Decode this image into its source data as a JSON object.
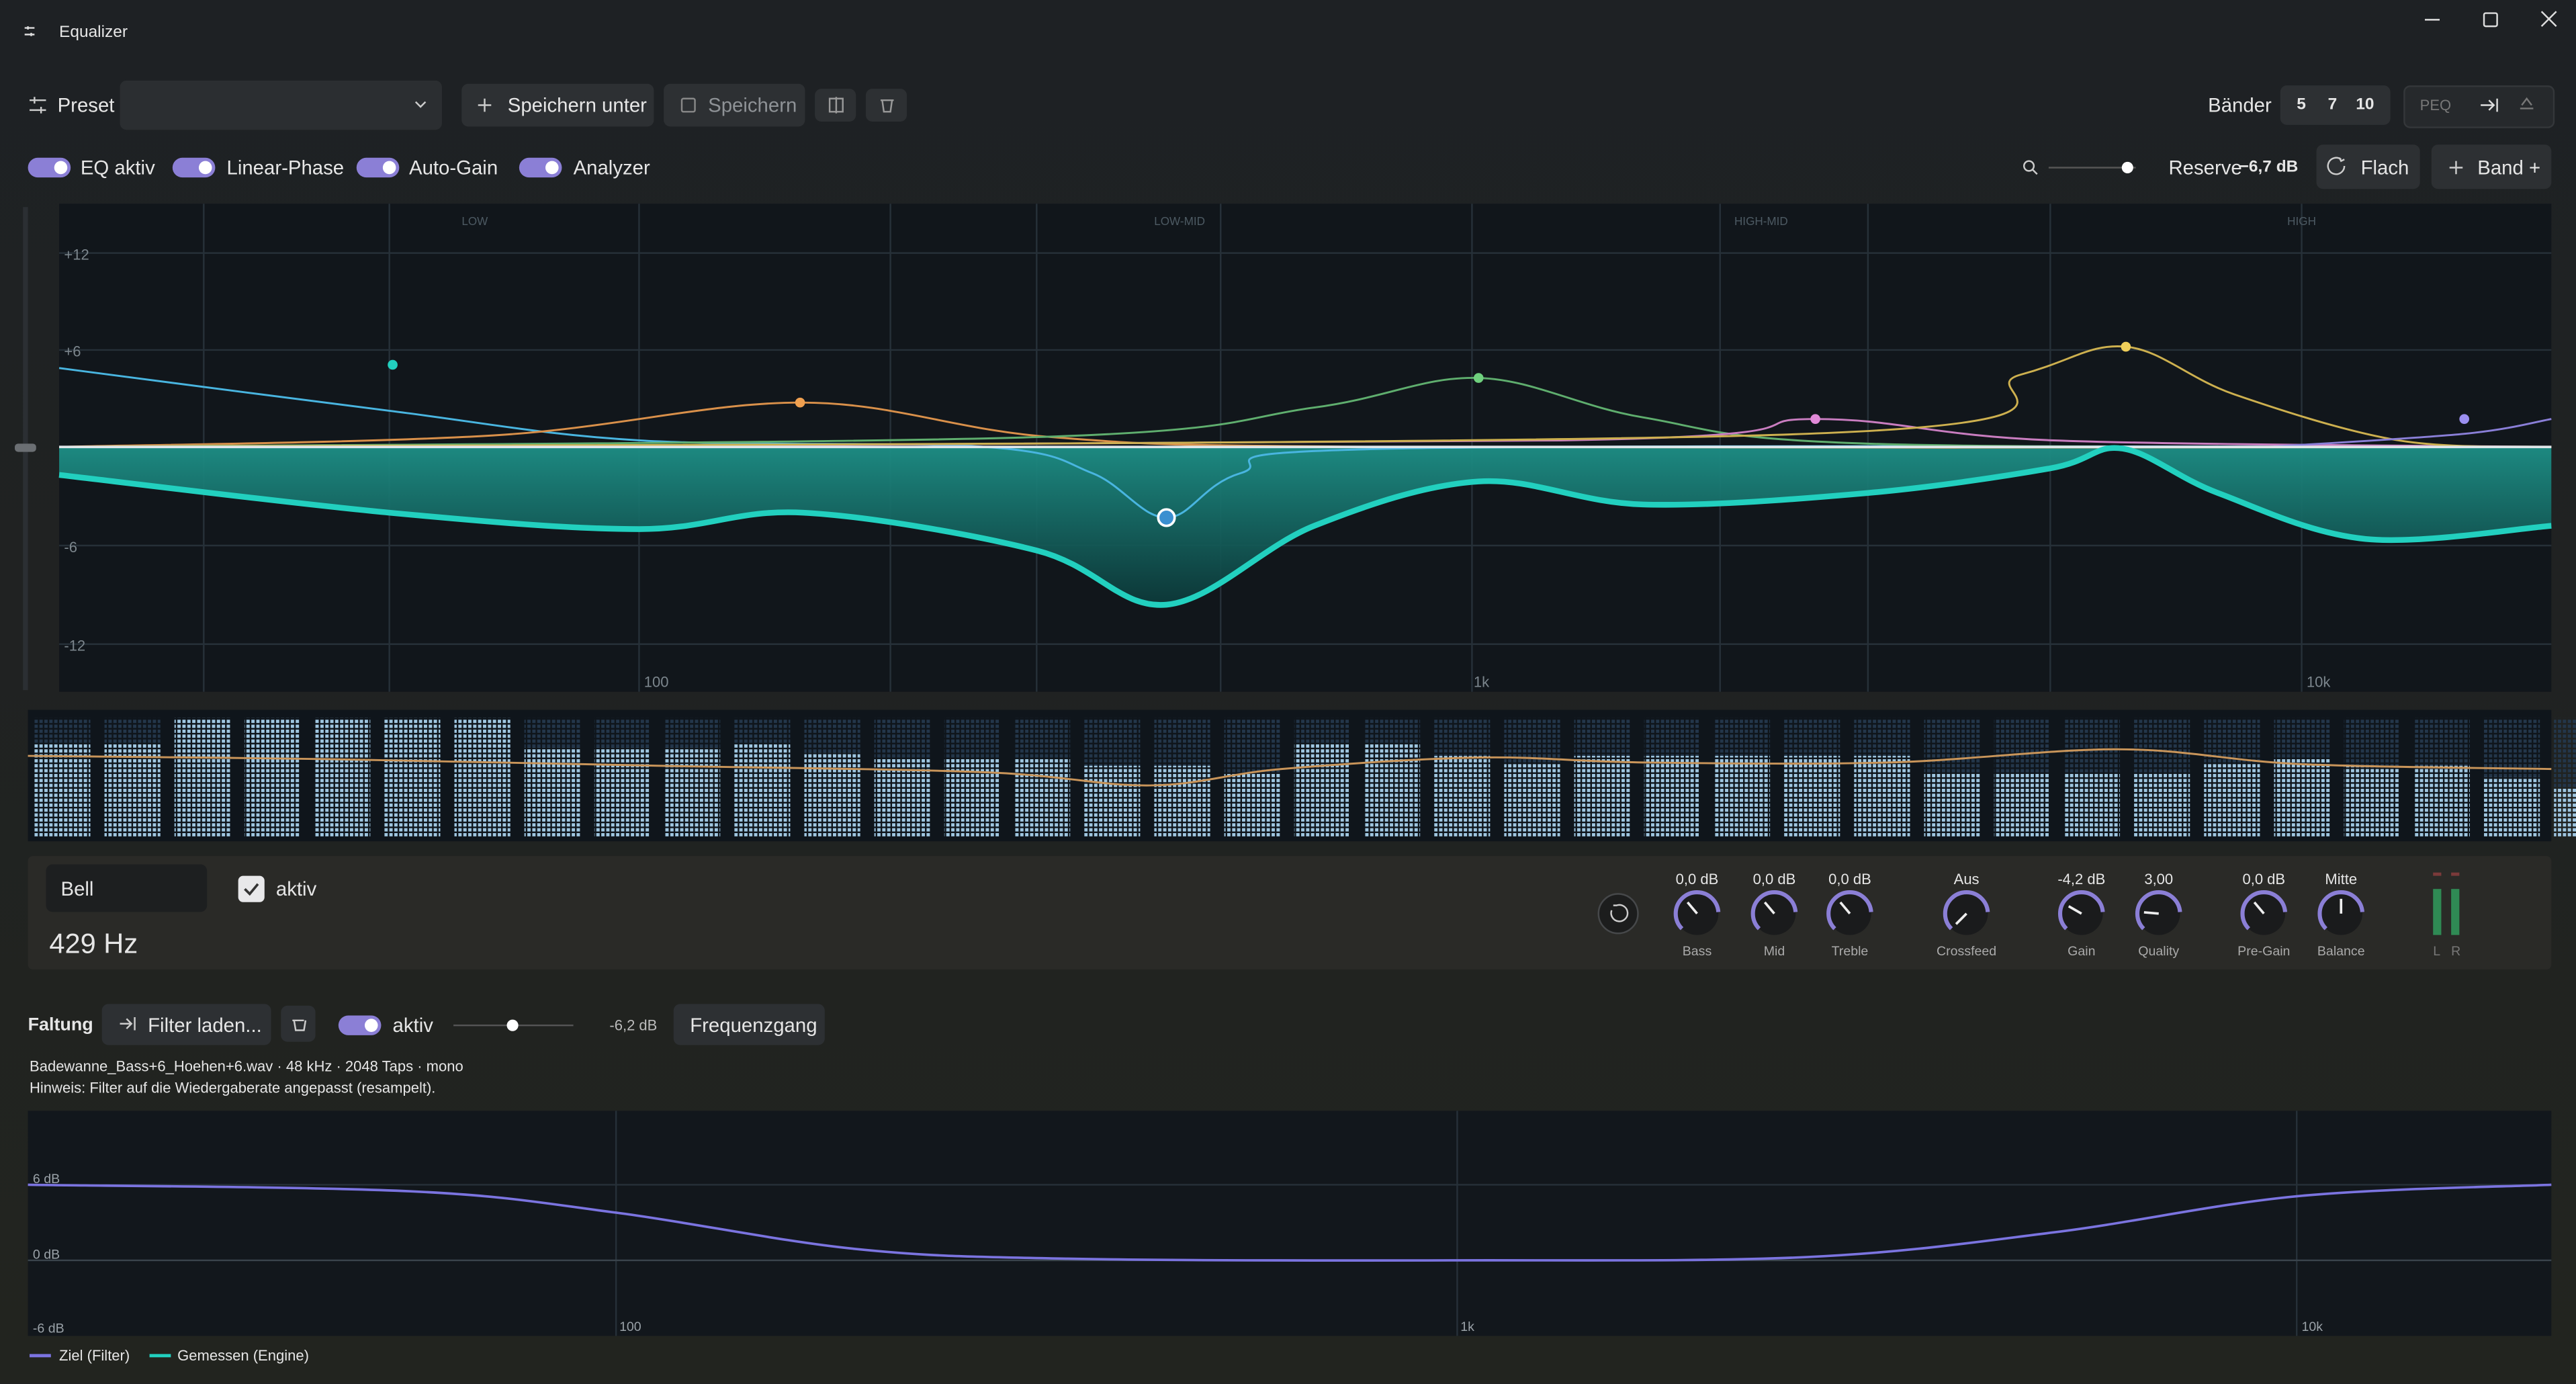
{
  "window": {
    "title": "Equalizer"
  },
  "toolbar": {
    "preset_label": "Preset",
    "save_as": "Speichern unter",
    "save": "Speichern",
    "bands_label": "Bänder",
    "band_counts": [
      "5",
      "7",
      "10"
    ],
    "peq": "PEQ"
  },
  "toggles": [
    "EQ aktiv",
    "Linear-Phase",
    "Auto-Gain",
    "Analyzer"
  ],
  "reserve": {
    "label": "Reserve",
    "value": "−6,7 dB"
  },
  "buttons": {
    "flat": "Flach",
    "add_band": "Band +"
  },
  "eq_graph": {
    "regions": [
      "LOW",
      "LOW-MID",
      "HIGH-MID",
      "HIGH"
    ],
    "y_labels": [
      "+12",
      "+6",
      "-6",
      "-12"
    ],
    "x_labels": [
      "100",
      "1k",
      "10k"
    ]
  },
  "band_editor": {
    "type": "Bell",
    "active": "aktiv",
    "frequency": "429 Hz",
    "knobs": [
      {
        "value": "0,0 dB",
        "label": "Bass"
      },
      {
        "value": "0,0 dB",
        "label": "Mid"
      },
      {
        "value": "0,0 dB",
        "label": "Treble"
      },
      {
        "value": "Aus",
        "label": "Crossfeed"
      },
      {
        "value": "-4,2 dB",
        "label": "Gain"
      },
      {
        "value": "3,00",
        "label": "Quality"
      },
      {
        "value": "0,0 dB",
        "label": "Pre-Gain"
      },
      {
        "value": "Mitte",
        "label": "Balance"
      }
    ],
    "meter_labels": [
      "L",
      "R"
    ]
  },
  "convolution": {
    "title": "Faltung",
    "load": "Filter laden...",
    "active": "aktiv",
    "gain": "-6,2 dB",
    "response": "Frequenzgang",
    "file_info": "Badewanne_Bass+6_Hoehen+6.wav · 48 kHz · 2048 Taps · mono",
    "hint": "Hinweis: Filter auf die Wiedergaberate angepasst (resampelt)."
  },
  "response_graph": {
    "y_labels": [
      "6 dB",
      "0 dB",
      "-6 dB"
    ],
    "x_labels": [
      "100",
      "1k",
      "10k"
    ],
    "legend": [
      "Ziel (Filter)",
      "Gemessen (Engine)"
    ]
  }
}
